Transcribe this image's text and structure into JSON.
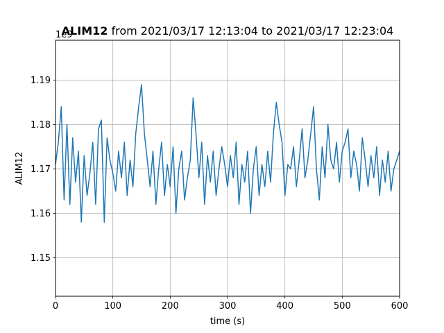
{
  "chart_data": {
    "type": "line",
    "title": {
      "bold": "ALIM12",
      "rest": " from 2021/03/17 12:13:04 to 2021/03/17 12:23:04"
    },
    "offset_text": "1e9",
    "xlabel": "time (s)",
    "ylabel": "ALIM12",
    "xlim": [
      0,
      600
    ],
    "ylim": [
      1.1413,
      1.199
    ],
    "xticks": [
      0,
      100,
      200,
      300,
      400,
      500,
      600
    ],
    "xtick_labels": [
      "0",
      "100",
      "200",
      "300",
      "400",
      "500",
      "600"
    ],
    "yticks": [
      1.15,
      1.16,
      1.17,
      1.18,
      1.19
    ],
    "ytick_labels": [
      "1.15",
      "1.16",
      "1.17",
      "1.18",
      "1.19"
    ],
    "y_unit_multiplier": "1e9",
    "grid": true,
    "legend": "none",
    "color": "#1f77b4",
    "series": [
      {
        "x": [
          0,
          5,
          10,
          15,
          20,
          25,
          30,
          35,
          40,
          45,
          50,
          55,
          60,
          65,
          70,
          75,
          80,
          85,
          90,
          95,
          100,
          105,
          110,
          115,
          120,
          125,
          130,
          135,
          140,
          145,
          150,
          155,
          160,
          165,
          170,
          175,
          180,
          185,
          190,
          195,
          200,
          205,
          210,
          215,
          220,
          225,
          230,
          235,
          240,
          245,
          250,
          255,
          260,
          265,
          270,
          275,
          280,
          285,
          290,
          295,
          300,
          305,
          310,
          315,
          320,
          325,
          330,
          335,
          340,
          345,
          350,
          355,
          360,
          365,
          370,
          375,
          380,
          385,
          390,
          395,
          400,
          405,
          410,
          415,
          420,
          425,
          430,
          435,
          440,
          445,
          450,
          455,
          460,
          465,
          470,
          475,
          480,
          485,
          490,
          495,
          500,
          505,
          510,
          515,
          520,
          525,
          530,
          535,
          540,
          545,
          550,
          555,
          560,
          565,
          570,
          575,
          580,
          585,
          590,
          595,
          600
        ],
        "values": [
          1.171,
          1.176,
          1.184,
          1.163,
          1.18,
          1.162,
          1.177,
          1.167,
          1.174,
          1.158,
          1.173,
          1.164,
          1.169,
          1.176,
          1.162,
          1.179,
          1.181,
          1.158,
          1.177,
          1.172,
          1.169,
          1.165,
          1.174,
          1.168,
          1.176,
          1.164,
          1.172,
          1.166,
          1.178,
          1.184,
          1.189,
          1.178,
          1.172,
          1.166,
          1.174,
          1.162,
          1.17,
          1.176,
          1.164,
          1.171,
          1.166,
          1.175,
          1.16,
          1.17,
          1.174,
          1.163,
          1.168,
          1.172,
          1.186,
          1.178,
          1.168,
          1.176,
          1.162,
          1.173,
          1.167,
          1.174,
          1.164,
          1.17,
          1.175,
          1.171,
          1.166,
          1.173,
          1.168,
          1.176,
          1.162,
          1.171,
          1.167,
          1.174,
          1.16,
          1.17,
          1.175,
          1.164,
          1.171,
          1.166,
          1.174,
          1.167,
          1.178,
          1.185,
          1.18,
          1.176,
          1.164,
          1.171,
          1.17,
          1.175,
          1.166,
          1.172,
          1.179,
          1.168,
          1.172,
          1.178,
          1.184,
          1.17,
          1.163,
          1.175,
          1.168,
          1.18,
          1.172,
          1.17,
          1.176,
          1.167,
          1.174,
          1.176,
          1.179,
          1.168,
          1.174,
          1.171,
          1.165,
          1.177,
          1.172,
          1.166,
          1.173,
          1.168,
          1.175,
          1.164,
          1.172,
          1.167,
          1.174,
          1.165,
          1.17,
          1.172,
          1.174
        ]
      }
    ]
  }
}
